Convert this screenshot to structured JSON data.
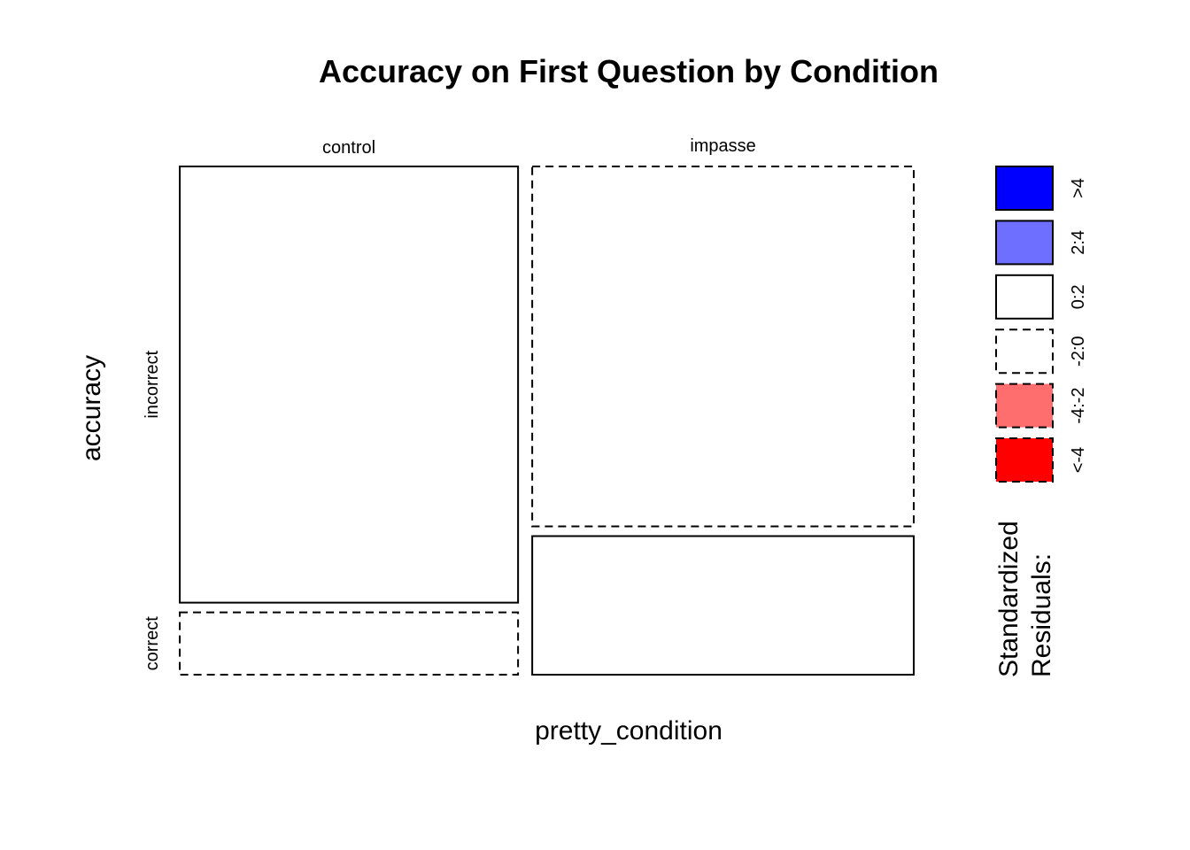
{
  "chart_data": {
    "type": "mosaic",
    "title": "Accuracy on First Question by Condition",
    "xlabel": "pretty_condition",
    "ylabel": "accuracy",
    "column_variable": "pretty_condition",
    "row_variable": "accuracy",
    "columns": [
      "control",
      "impasse"
    ],
    "rows": [
      "incorrect",
      "correct"
    ],
    "column_proportions": [
      0.47,
      0.53
    ],
    "cells": [
      {
        "column": "control",
        "row": "incorrect",
        "proportion_within_column": 0.875,
        "residual_class": "0:2"
      },
      {
        "column": "control",
        "row": "correct",
        "proportion_within_column": 0.125,
        "residual_class": "-2:0"
      },
      {
        "column": "impasse",
        "row": "incorrect",
        "proportion_within_column": 0.722,
        "residual_class": "-2:0"
      },
      {
        "column": "impasse",
        "row": "correct",
        "proportion_within_column": 0.278,
        "residual_class": "0:2"
      }
    ],
    "legend": {
      "title_lines": [
        "Standardized",
        "Residuals:"
      ],
      "placement": "right",
      "items": [
        {
          "label": ">4",
          "fill": "#0000ff",
          "dashed": false
        },
        {
          "label": "2:4",
          "fill": "#6e6eff",
          "dashed": false
        },
        {
          "label": "0:2",
          "fill": "#ffffff",
          "dashed": false
        },
        {
          "label": "-2:0",
          "fill": "#ffffff",
          "dashed": true
        },
        {
          "label": "-4:-2",
          "fill": "#ff6e6e",
          "dashed": true
        },
        {
          "label": "<-4",
          "fill": "#ff0000",
          "dashed": true
        }
      ]
    }
  }
}
